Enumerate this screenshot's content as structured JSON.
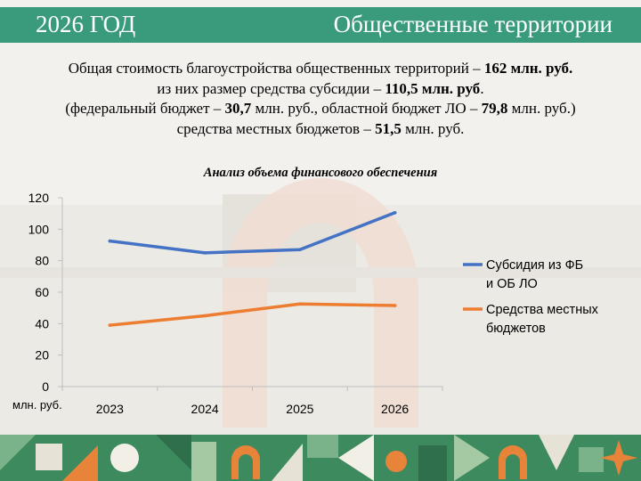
{
  "header": {
    "year": "2026 ГОД",
    "title": "Общественные территории"
  },
  "summary": {
    "l1_text": "Общая стоимость благоустройства общественных территорий – ",
    "l1_bold": "162 млн. руб.",
    "l2_text": "из них размер средства субсидии – ",
    "l2_bold": "110,5 млн. руб",
    "l2_end": ".",
    "l3_a": "(федеральный бюджет – ",
    "l3_b": "30,7",
    "l3_c": " млн. руб., областной бюджет ЛО – ",
    "l3_d": "79,8",
    "l3_e": " млн. руб.)",
    "l4_a": "средства местных бюджетов – ",
    "l4_b": "51,5",
    "l4_c": " млн. руб."
  },
  "colors": {
    "header": "#3a9b7c",
    "series_1": "#4472c4",
    "series_2": "#ed7d31",
    "footer_green": "#3d8a5e",
    "footer_orange": "#e8833a"
  },
  "chart_data": {
    "type": "line",
    "title": "Анализ объема финансового обеспечения",
    "categories": [
      "2023",
      "2024",
      "2025",
      "2026"
    ],
    "xlabel": "млн. руб.",
    "ylim": [
      0,
      120
    ],
    "yticks": [
      0,
      20,
      40,
      60,
      80,
      100,
      120
    ],
    "grid": false,
    "legend": "right",
    "series": [
      {
        "name": "Субсидия из ФБ и ОБ ЛО",
        "values": [
          92.5,
          85,
          87,
          110.5
        ]
      },
      {
        "name": "Средства местных бюджетов",
        "values": [
          39,
          45,
          52.5,
          51.5
        ]
      }
    ]
  }
}
